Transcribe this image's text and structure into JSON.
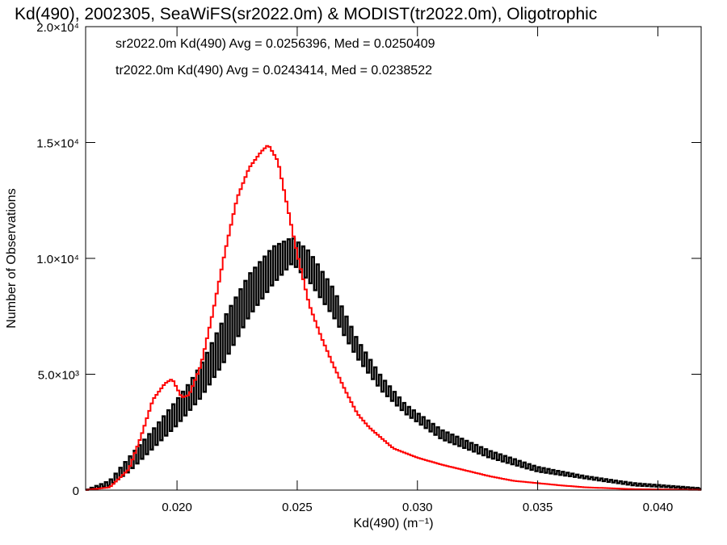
{
  "chart_data": {
    "type": "histogram",
    "title": "Kd(490), 2002305, SeaWiFS(sr2022.0m) & MODIST(tr2022.0m), Oligotrophic",
    "xlabel": "Kd(490) (m⁻¹)",
    "ylabel": "Number of Observations",
    "xlim": [
      0.0162,
      0.0418
    ],
    "ylim": [
      0,
      20000
    ],
    "x_ticks": [
      0.02,
      0.025,
      0.03,
      0.035,
      0.04
    ],
    "x_tick_labels": [
      "0.020",
      "0.025",
      "0.030",
      "0.035",
      "0.040"
    ],
    "y_ticks": [
      0,
      5000,
      10000,
      15000,
      20000
    ],
    "y_tick_labels": [
      "0",
      "5.0×10³",
      "1.0×10⁴",
      "1.5×10⁴",
      "2.0×10⁴"
    ],
    "grid": false,
    "series": [
      {
        "name": "sr2022.0m",
        "color": "#000000",
        "label": "sr2022.0m Kd(490) Avg = 0.0256396, Med = 0.0250409",
        "style": "oscillating-step",
        "x": [
          0.0162,
          0.0172,
          0.018,
          0.019,
          0.02,
          0.0205,
          0.021,
          0.022,
          0.023,
          0.024,
          0.0248,
          0.0255,
          0.0265,
          0.0275,
          0.0285,
          0.0295,
          0.031,
          0.033,
          0.035,
          0.037,
          0.039,
          0.0418
        ],
        "low": [
          0,
          200,
          800,
          1800,
          2800,
          3400,
          4000,
          5600,
          7500,
          8900,
          9800,
          9000,
          7500,
          5700,
          4300,
          3300,
          2200,
          1400,
          800,
          500,
          200,
          50
        ],
        "high": [
          0,
          400,
          1400,
          2600,
          3900,
          4600,
          5400,
          7500,
          9300,
          10500,
          10900,
          10300,
          8700,
          6500,
          4900,
          3700,
          2600,
          1700,
          1000,
          600,
          300,
          80
        ]
      },
      {
        "name": "tr2022.0m",
        "color": "#ff0000",
        "label": "tr2022.0m Kd(490) Avg = 0.0243414, Med = 0.0238522",
        "style": "step",
        "x": [
          0.0162,
          0.0172,
          0.018,
          0.0185,
          0.019,
          0.0195,
          0.0198,
          0.0202,
          0.0205,
          0.021,
          0.0215,
          0.022,
          0.0225,
          0.023,
          0.0235,
          0.0238,
          0.0242,
          0.0245,
          0.025,
          0.0255,
          0.026,
          0.0265,
          0.027,
          0.0275,
          0.028,
          0.029,
          0.03,
          0.031,
          0.032,
          0.033,
          0.034,
          0.035,
          0.036,
          0.037,
          0.038,
          0.039,
          0.0418
        ],
        "y": [
          0,
          120,
          900,
          2300,
          3900,
          4600,
          4800,
          4000,
          4100,
          5400,
          7700,
          10300,
          12600,
          13900,
          14600,
          14900,
          14200,
          12700,
          10200,
          8000,
          6600,
          5400,
          4300,
          3300,
          2700,
          1800,
          1400,
          1100,
          850,
          600,
          400,
          300,
          200,
          120,
          80,
          40,
          10
        ]
      }
    ]
  }
}
